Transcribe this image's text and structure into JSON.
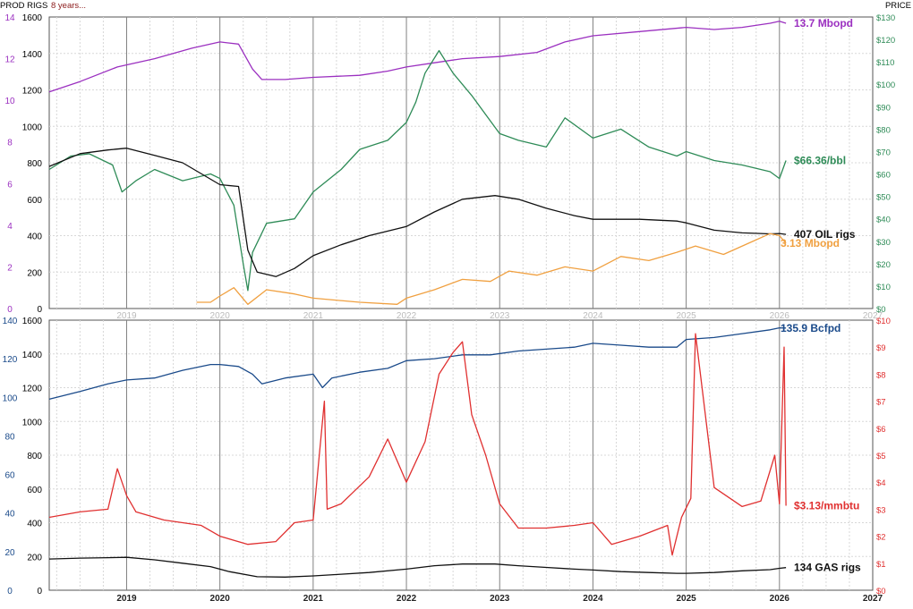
{
  "header": {
    "left_label": "PROD RIGS",
    "subtitle": "8 years...",
    "right_label": "PRICE"
  },
  "colors": {
    "oil_prod": "#9b30c0",
    "oil_price": "#2e8b57",
    "oil_rigs": "#111111",
    "other_prod": "#f0a040",
    "gas_prod": "#1a4a8a",
    "gas_price": "#e03030",
    "gas_rigs": "#111111",
    "grid_year": "#808080",
    "grid_minor": "#d8d8d8"
  },
  "year_labels": [
    "2019",
    "2020",
    "2021",
    "2022",
    "2023",
    "2024",
    "2025",
    "2026",
    "2027"
  ],
  "chart_data": [
    {
      "type": "line",
      "name": "top-panel-oil",
      "x_range": [
        2018.17,
        2027.0
      ],
      "left_axis_ticks": [
        "0",
        "200",
        "400",
        "600",
        "800",
        "1000",
        "1200",
        "1400",
        "1600"
      ],
      "left_axis_ticks_2": [
        "0",
        "2",
        "4",
        "6",
        "8",
        "10",
        "12",
        "14"
      ],
      "right_axis_ticks": [
        "$0",
        "$10",
        "$20",
        "$30",
        "$40",
        "$50",
        "$60",
        "$70",
        "$80",
        "$90",
        "$100",
        "$110",
        "$120",
        "$130"
      ],
      "ylim_left": [
        0,
        1600
      ],
      "ylim_left_2": [
        0,
        14
      ],
      "ylim_right": [
        0,
        130
      ],
      "end_labels": {
        "oil_prod": "13.7 Mbopd",
        "oil_price": "$66.36/bbl",
        "oil_rigs": "407 OIL rigs",
        "other_prod": "3.13 Mbopd"
      },
      "series": [
        {
          "key": "oil_prod",
          "axis": "left2",
          "x": [
            2018.17,
            2018.5,
            2018.9,
            2019.3,
            2019.7,
            2020.0,
            2020.2,
            2020.35,
            2020.45,
            2020.7,
            2021.0,
            2021.5,
            2021.8,
            2022.0,
            2022.3,
            2022.6,
            2023.0,
            2023.4,
            2023.7,
            2024.0,
            2024.5,
            2025.0,
            2025.3,
            2025.6,
            2025.9,
            2026.0,
            2026.07
          ],
          "y": [
            10.4,
            10.9,
            11.6,
            12.0,
            12.5,
            12.8,
            12.7,
            11.5,
            11.0,
            11.0,
            11.1,
            11.2,
            11.4,
            11.6,
            11.8,
            12.0,
            12.1,
            12.3,
            12.8,
            13.1,
            13.3,
            13.5,
            13.4,
            13.5,
            13.7,
            13.8,
            13.7
          ]
        },
        {
          "key": "oil_price",
          "axis": "right",
          "x": [
            2018.17,
            2018.4,
            2018.6,
            2018.85,
            2018.95,
            2019.1,
            2019.3,
            2019.6,
            2019.9,
            2020.0,
            2020.15,
            2020.25,
            2020.3,
            2020.35,
            2020.5,
            2020.8,
            2021.0,
            2021.3,
            2021.5,
            2021.8,
            2022.0,
            2022.1,
            2022.2,
            2022.35,
            2022.5,
            2022.7,
            2023.0,
            2023.2,
            2023.5,
            2023.7,
            2024.0,
            2024.3,
            2024.6,
            2024.9,
            2025.0,
            2025.3,
            2025.6,
            2025.9,
            2026.0,
            2026.07
          ],
          "y": [
            62,
            68,
            69,
            64,
            52,
            57,
            62,
            57,
            60,
            58,
            46,
            20,
            8,
            25,
            38,
            40,
            52,
            62,
            71,
            75,
            83,
            92,
            105,
            115,
            105,
            95,
            78,
            75,
            72,
            85,
            76,
            80,
            72,
            68,
            70,
            66,
            64,
            61,
            58,
            66
          ]
        },
        {
          "key": "oil_rigs",
          "axis": "left",
          "x": [
            2018.17,
            2018.5,
            2018.8,
            2019.0,
            2019.3,
            2019.6,
            2020.0,
            2020.2,
            2020.3,
            2020.4,
            2020.6,
            2020.8,
            2021.0,
            2021.3,
            2021.6,
            2022.0,
            2022.3,
            2022.6,
            2022.95,
            2023.2,
            2023.5,
            2023.8,
            2024.0,
            2024.5,
            2024.9,
            2025.0,
            2025.3,
            2025.6,
            2025.9,
            2026.0,
            2026.07
          ],
          "y": [
            780,
            850,
            870,
            880,
            840,
            800,
            680,
            670,
            320,
            200,
            175,
            220,
            290,
            350,
            400,
            450,
            530,
            600,
            620,
            600,
            550,
            510,
            490,
            490,
            480,
            470,
            430,
            415,
            410,
            412,
            407
          ]
        },
        {
          "key": "other_prod",
          "axis": "left2",
          "x": [
            2019.75,
            2019.9,
            2020.0,
            2020.15,
            2020.3,
            2020.5,
            2020.8,
            2021.0,
            2021.5,
            2021.9,
            2022.0,
            2022.3,
            2022.6,
            2022.9,
            2023.1,
            2023.4,
            2023.7,
            2024.0,
            2024.3,
            2024.6,
            2024.9,
            2025.1,
            2025.4,
            2025.7,
            2025.9,
            2026.0,
            2026.07
          ],
          "y": [
            0.3,
            0.3,
            0.6,
            1.0,
            0.2,
            0.9,
            0.7,
            0.5,
            0.3,
            0.2,
            0.5,
            0.9,
            1.4,
            1.3,
            1.8,
            1.6,
            2.0,
            1.8,
            2.5,
            2.3,
            2.7,
            3.0,
            2.6,
            3.2,
            3.6,
            3.5,
            3.13
          ]
        }
      ]
    },
    {
      "type": "line",
      "name": "bottom-panel-gas",
      "x_range": [
        2018.17,
        2027.0
      ],
      "left_axis_ticks": [
        "0",
        "200",
        "400",
        "600",
        "800",
        "1000",
        "1200",
        "1400",
        "1600"
      ],
      "left_axis_ticks_2": [
        "0",
        "20",
        "40",
        "60",
        "80",
        "100",
        "120",
        "140"
      ],
      "right_axis_ticks": [
        "$0",
        "$1",
        "$2",
        "$3",
        "$4",
        "$5",
        "$6",
        "$7",
        "$8",
        "$9",
        "$10"
      ],
      "ylim_left": [
        0,
        1600
      ],
      "ylim_left_2": [
        0,
        140
      ],
      "ylim_right": [
        0,
        10
      ],
      "end_labels": {
        "gas_prod": "135.9 Bcfpd",
        "gas_price": "$3.13/mmbtu",
        "gas_rigs": "134 GAS rigs"
      },
      "series": [
        {
          "key": "gas_prod",
          "axis": "left2",
          "x": [
            2018.17,
            2018.5,
            2018.8,
            2019.0,
            2019.3,
            2019.6,
            2019.9,
            2020.0,
            2020.2,
            2020.35,
            2020.45,
            2020.7,
            2021.0,
            2021.1,
            2021.2,
            2021.5,
            2021.8,
            2022.0,
            2022.3,
            2022.6,
            2022.9,
            2023.2,
            2023.5,
            2023.8,
            2024.0,
            2024.3,
            2024.6,
            2024.9,
            2025.0,
            2025.3,
            2025.6,
            2025.9,
            2026.0,
            2026.07
          ],
          "y": [
            99,
            103,
            107,
            109,
            110,
            114,
            117,
            117,
            116,
            112,
            107,
            110,
            112,
            105,
            110,
            113,
            115,
            119,
            120,
            122,
            122,
            124,
            125,
            126,
            128,
            127,
            126,
            126,
            130,
            131,
            133,
            135,
            136,
            135.9
          ]
        },
        {
          "key": "gas_price",
          "axis": "right",
          "x": [
            2018.17,
            2018.5,
            2018.8,
            2018.9,
            2019.0,
            2019.1,
            2019.4,
            2019.8,
            2020.0,
            2020.3,
            2020.6,
            2020.8,
            2021.0,
            2021.12,
            2021.15,
            2021.3,
            2021.6,
            2021.8,
            2022.0,
            2022.2,
            2022.35,
            2022.5,
            2022.6,
            2022.7,
            2022.85,
            2023.0,
            2023.2,
            2023.5,
            2023.8,
            2024.0,
            2024.2,
            2024.5,
            2024.8,
            2024.85,
            2024.95,
            2025.05,
            2025.1,
            2025.3,
            2025.6,
            2025.8,
            2025.95,
            2026.0,
            2026.05,
            2026.07
          ],
          "y": [
            2.7,
            2.9,
            3.0,
            4.5,
            3.5,
            2.9,
            2.6,
            2.4,
            2.0,
            1.7,
            1.8,
            2.5,
            2.6,
            7.0,
            3.0,
            3.2,
            4.2,
            5.6,
            4.0,
            5.5,
            8.0,
            8.8,
            9.2,
            6.5,
            5.0,
            3.2,
            2.3,
            2.3,
            2.4,
            2.5,
            1.7,
            2.0,
            2.4,
            1.3,
            2.7,
            3.4,
            9.5,
            3.8,
            3.1,
            3.3,
            5.0,
            3.2,
            9.0,
            3.13
          ]
        },
        {
          "key": "gas_rigs",
          "axis": "left",
          "x": [
            2018.17,
            2018.5,
            2018.8,
            2019.0,
            2019.3,
            2019.6,
            2019.9,
            2020.1,
            2020.4,
            2020.7,
            2021.0,
            2021.3,
            2021.6,
            2022.0,
            2022.3,
            2022.6,
            2022.95,
            2023.2,
            2023.5,
            2023.8,
            2024.0,
            2024.3,
            2024.6,
            2024.9,
            2025.0,
            2025.3,
            2025.6,
            2025.9,
            2026.0,
            2026.07
          ],
          "y": [
            185,
            190,
            193,
            195,
            180,
            160,
            140,
            110,
            80,
            78,
            85,
            95,
            105,
            125,
            145,
            155,
            155,
            145,
            135,
            125,
            120,
            110,
            105,
            100,
            100,
            105,
            115,
            122,
            130,
            134
          ]
        }
      ]
    }
  ]
}
